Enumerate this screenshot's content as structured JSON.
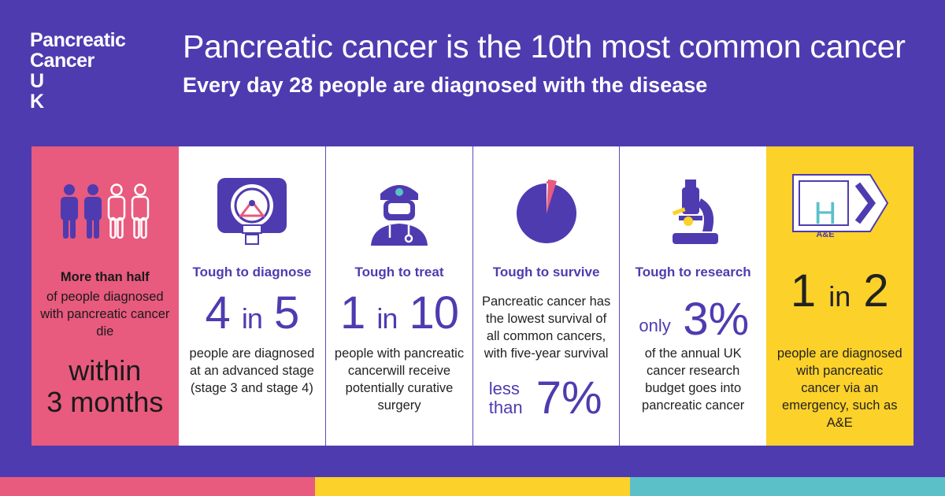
{
  "logo": {
    "line1": "Pancreatic",
    "line2": "Cancer",
    "line3": "U",
    "line4": "K"
  },
  "header": {
    "title": "Pancreatic cancer is the 10th most common cancer",
    "subtitle": "Every day 28 people are diagnosed with the disease"
  },
  "panels": {
    "p1": {
      "icon": "people-icon",
      "bold": "More than half",
      "desc": "of people diagnosed with pancreatic cancer die",
      "big1": "within",
      "big2": "3 months"
    },
    "p2": {
      "icon": "scanner-icon",
      "title": "Tough to diagnose",
      "num_a": "4",
      "num_in": "in",
      "num_b": "5",
      "desc": "people are diagnosed at an advanced stage (stage 3 and stage 4)"
    },
    "p3": {
      "icon": "surgeon-icon",
      "title": "Tough to treat",
      "num_a": "1",
      "num_in": "in",
      "num_b": "10",
      "desc": "people with pancreatic cancerwill receive potentially curative surgery"
    },
    "p4": {
      "icon": "pie-icon",
      "title": "Tough to survive",
      "desc": "Pancreatic cancer has the lowest survival of all common cancers, with five-year survival",
      "less": "less",
      "than": "than",
      "pct": "7%"
    },
    "p5": {
      "icon": "microscope-icon",
      "title": "Tough to  research",
      "only": "only",
      "pct": "3%",
      "desc": "of the annual UK cancer research budget goes into pancreatic cancer"
    },
    "p6": {
      "icon": "hospital-sign-icon",
      "sign_h": "H",
      "sign_ae": "A&E",
      "num_a": "1",
      "num_in": "in",
      "num_b": "2",
      "desc": "people are diagnosed with pancreatic cancer via an emergency, such as A&E"
    }
  },
  "colors": {
    "background": "#4f3bb0",
    "pink": "#e85a7e",
    "yellow": "#fcd12a",
    "teal": "#5bc0c8",
    "purple": "#4f3bb0"
  }
}
